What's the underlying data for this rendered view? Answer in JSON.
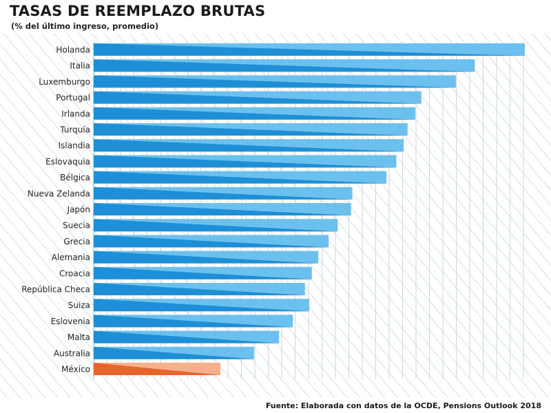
{
  "chart_data": {
    "type": "bar",
    "orientation": "horizontal",
    "title": "TASAS DE REEMPLAZO BRUTAS",
    "subtitle": "(% del último ingreso, promedio)",
    "source": "Fuente: Elaborada con datos de la OCDE, Pensions Outlook 2018",
    "categories": [
      "Holanda",
      "Italia",
      "Luxemburgo",
      "Portugal",
      "Irlanda",
      "Turquía",
      "Islandia",
      "Eslovaquia",
      "Bélgica",
      "Nueva Zelanda",
      "Japón",
      "Suecia",
      "Grecia",
      "Alemania",
      "Croacia",
      "República Checa",
      "Suiza",
      "Eslovenia",
      "Malta",
      "Australia",
      "México"
    ],
    "values": [
      100.0,
      88.4,
      84.0,
      76.0,
      74.6,
      72.8,
      71.9,
      70.2,
      67.9,
      60.0,
      59.7,
      56.6,
      54.5,
      52.1,
      50.6,
      49.0,
      50.0,
      46.2,
      43.0,
      37.2,
      29.4
    ],
    "xlim": [
      0,
      100
    ],
    "xlabel": "",
    "ylabel": "",
    "grid": true,
    "colors": {
      "bar_dark": "#1e8fd6",
      "bar_light": "#6cc0ee",
      "highlight_dark": "#e8642b",
      "highlight_light": "#f7b08c",
      "grid": "#c9d6de",
      "hatch": "#e1e8ee"
    },
    "highlight": "México"
  }
}
